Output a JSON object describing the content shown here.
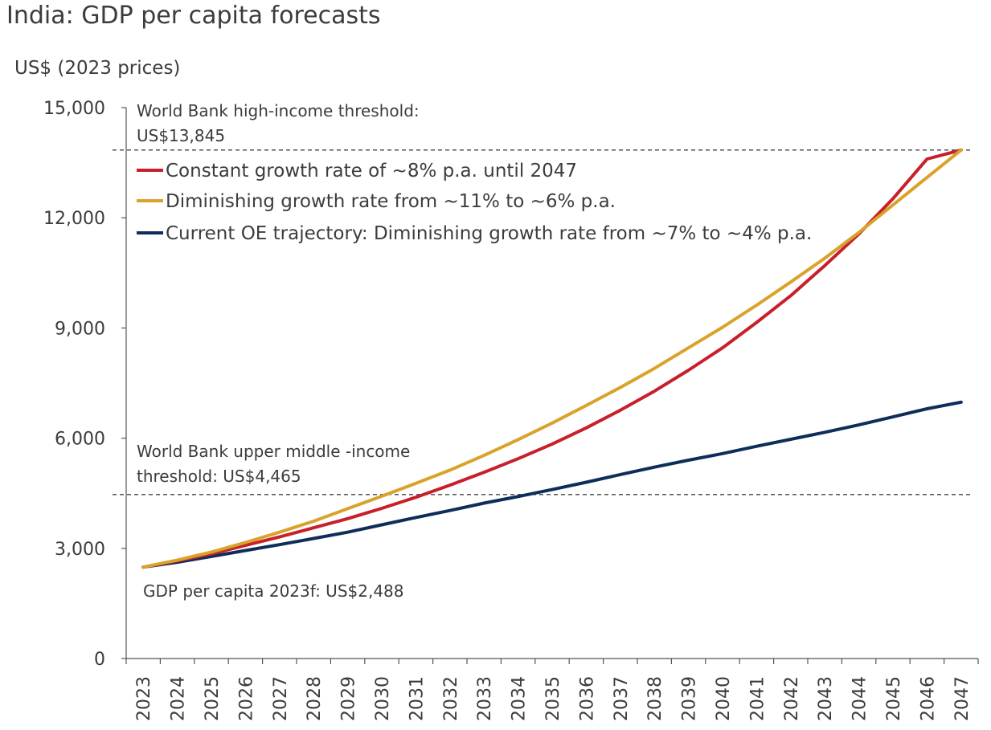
{
  "title": "India: GDP per capita forecasts",
  "y_unit": "US$ (2023 prices)",
  "colors": {
    "constant": "#c8202a",
    "diminishing": "#d9a32a",
    "current": "#0f2d5a",
    "axis": "#555555",
    "threshold_line": "#444444"
  },
  "annotations": {
    "high_income_line1": "World Bank high-income threshold:",
    "high_income_line2": "US$13,845",
    "upper_middle_line1": "World Bank upper middle -income",
    "upper_middle_line2": "threshold: US$4,465",
    "start_label": "GDP per capita 2023f: US$2,488"
  },
  "chart_data": {
    "type": "line",
    "title": "India: GDP per capita forecasts",
    "ylabel": "US$ (2023 prices)",
    "xlabel": "",
    "ylim": [
      0,
      15000
    ],
    "yticks": [
      0,
      3000,
      6000,
      9000,
      12000,
      15000
    ],
    "ytick_labels": [
      "0",
      "3,000",
      "6,000",
      "9,000",
      "12,000",
      "15,000"
    ],
    "categories": [
      "2023",
      "2024",
      "2025",
      "2026",
      "2027",
      "2028",
      "2029",
      "2030",
      "2031",
      "2032",
      "2033",
      "2034",
      "2035",
      "2036",
      "2037",
      "2038",
      "2039",
      "2040",
      "2041",
      "2042",
      "2043",
      "2044",
      "2045",
      "2046",
      "2047"
    ],
    "series": [
      {
        "key": "constant",
        "name": "Constant growth rate of ~8% p.a. until 2047",
        "values": [
          2488,
          2660,
          2850,
          3080,
          3310,
          3560,
          3810,
          4090,
          4390,
          4720,
          5070,
          5440,
          5840,
          6280,
          6760,
          7280,
          7850,
          8460,
          9150,
          9880,
          10700,
          11560,
          12520,
          13600,
          13845
        ]
      },
      {
        "key": "diminishing",
        "name": "Diminishing growth rate from ~11% to ~6% p.a.",
        "values": [
          2488,
          2680,
          2900,
          3160,
          3440,
          3740,
          4080,
          4420,
          4770,
          5130,
          5530,
          5960,
          6410,
          6890,
          7380,
          7900,
          8460,
          9020,
          9620,
          10250,
          10900,
          11600,
          12350,
          13100,
          13845
        ]
      },
      {
        "key": "current",
        "name": "Current OE trajectory: Diminishing growth rate from ~7% to ~4% p.a.",
        "values": [
          2488,
          2620,
          2780,
          2940,
          3100,
          3270,
          3440,
          3640,
          3840,
          4030,
          4230,
          4410,
          4600,
          4800,
          5010,
          5210,
          5400,
          5580,
          5780,
          5970,
          6160,
          6360,
          6580,
          6800,
          6980
        ]
      }
    ],
    "reference_lines": [
      {
        "name": "World Bank high-income threshold",
        "value": 13845
      },
      {
        "name": "World Bank upper middle-income threshold",
        "value": 4465
      }
    ]
  }
}
